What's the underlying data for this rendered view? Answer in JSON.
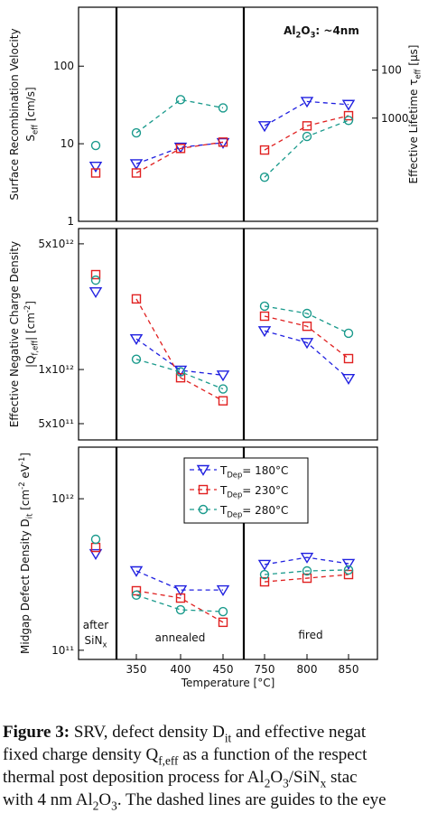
{
  "chart_data": [
    {
      "type": "line",
      "log_y": true,
      "ylabel": [
        "Surface Recombination Velocity",
        "Seff [cm/s]"
      ],
      "y2label": "Effective Lifetime τeff [µs]",
      "ylim": [
        1,
        575
      ],
      "yticks": [
        1,
        10,
        100
      ],
      "y2lim": [
        141000,
        4.9
      ],
      "y2ticks": [
        100,
        1000
      ],
      "annotation": "Al2O3:  ~4nm",
      "series": [
        {
          "color": "#2020e0",
          "marker": "v",
          "values": [
            5.1,
            5.5,
            9,
            10.3,
            17,
            35,
            32
          ]
        },
        {
          "color": "#e02020",
          "marker": "s",
          "values": [
            4.2,
            4.2,
            8.7,
            10.5,
            8.3,
            17,
            23
          ]
        },
        {
          "color": "#1a9a8c",
          "marker": "o",
          "values": [
            9.5,
            13.8,
            37,
            29,
            3.7,
            12.4,
            20
          ]
        }
      ]
    },
    {
      "type": "line",
      "log_y": true,
      "ylabel": [
        "Effective Negative Charge Density",
        "|Qf,eff| [cm-2]"
      ],
      "ylim": [
        406000000000,
        6080000000000
      ],
      "yticks": [
        {
          "value": 500000000000,
          "label": "5x10¹¹"
        },
        {
          "value": 1000000000000,
          "label": "1x10¹²"
        },
        {
          "value": 5000000000000,
          "label": "5x10¹²"
        }
      ],
      "series": [
        {
          "color": "#2020e0",
          "marker": "v",
          "values": [
            2700000000000,
            1480000000000,
            990000000000,
            930000000000,
            1640000000000,
            1410000000000,
            890000000000
          ]
        },
        {
          "color": "#e02020",
          "marker": "s",
          "values": [
            3370000000000,
            2470000000000,
            900000000000,
            670000000000,
            1980000000000,
            1740000000000,
            1150000000000
          ]
        },
        {
          "color": "#1a9a8c",
          "marker": "o",
          "values": [
            3140000000000,
            1140000000000,
            970000000000,
            780000000000,
            2250000000000,
            2050000000000,
            1590000000000
          ]
        }
      ]
    },
    {
      "type": "line",
      "log_y": true,
      "ylabel": "Midgap Defect Density Dit [cm-2 eV-1]",
      "xlabel": "Temperature [°C]",
      "categories": [
        null,
        "350",
        "400",
        "450",
        "750",
        "800",
        "850"
      ],
      "ylim": [
        87000000000,
        2190000000000
      ],
      "yticks": [
        {
          "value": 100000000000,
          "label": "10¹¹"
        },
        {
          "value": 1000000000000,
          "label": "10¹²"
        }
      ],
      "sections": [
        "after",
        "SiNx",
        "annealed",
        "fired"
      ],
      "legend": "upper center",
      "series": [
        {
          "name": "TDep= 180°C",
          "color": "#2020e0",
          "marker": "v",
          "values": [
            433000000000,
            334000000000,
            250000000000,
            250000000000,
            368000000000,
            410000000000,
            373000000000
          ]
        },
        {
          "name": "TDep= 230°C",
          "color": "#e02020",
          "marker": "s",
          "values": [
            477000000000,
            247000000000,
            221000000000,
            153000000000,
            283000000000,
            299000000000,
            316000000000
          ]
        },
        {
          "name": "TDep= 280°C",
          "color": "#1a9a8c",
          "marker": "o",
          "values": [
            540000000000,
            231000000000,
            185000000000,
            180000000000,
            316000000000,
            334000000000,
            339000000000
          ]
        }
      ]
    }
  ],
  "caption": {
    "label": "Figure 3:",
    "lines": [
      " SRV, defect density Dit and effective negat",
      "fixed charge density Qf,eff as a function of the respect",
      "thermal post deposition process for Al2O3/SiNx stac",
      "with 4 nm Al2O3. The dashed lines are guides to the eye"
    ]
  }
}
